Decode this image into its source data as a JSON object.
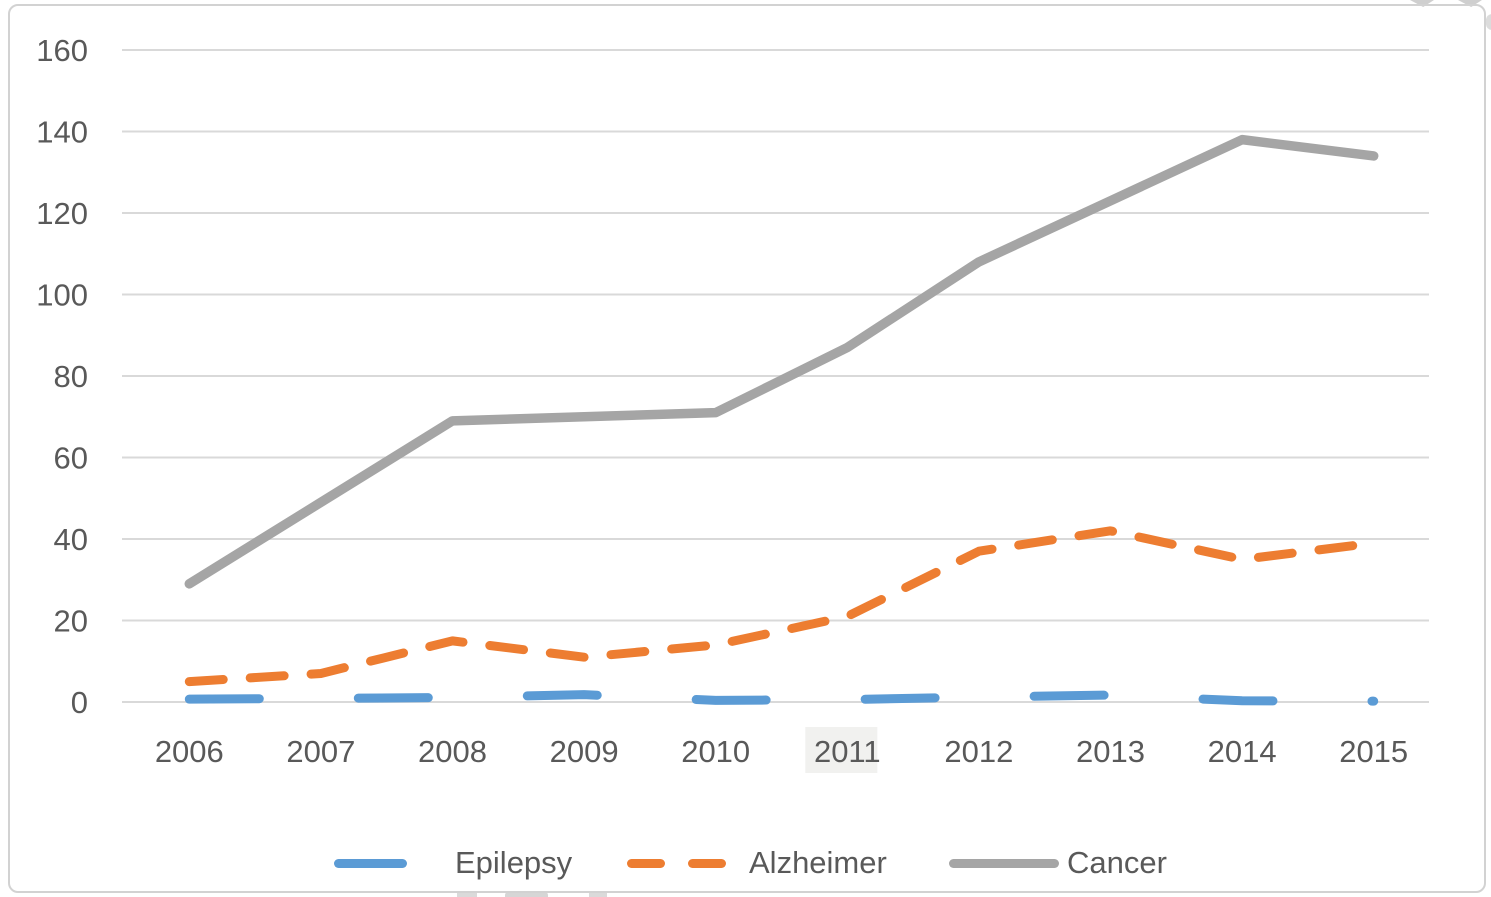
{
  "figure": {
    "background": "#ffffff",
    "border_color": "#d2d2d2"
  },
  "chart_data": {
    "type": "line",
    "title": "",
    "xlabel": "",
    "ylabel": "",
    "x_categories": [
      "2006",
      "2007",
      "2008",
      "2009",
      "2010",
      "2011",
      "2012",
      "2013",
      "2014",
      "2015"
    ],
    "series": [
      {
        "name": "Epilepsy",
        "color": "#5B9BD5",
        "line_style": "long-dash",
        "values": [
          0.7,
          0.9,
          1.1,
          1.8,
          0.4,
          0.6,
          1.2,
          1.7,
          0.3,
          0.2
        ]
      },
      {
        "name": "Alzheimer",
        "color": "#ED7D31",
        "line_style": "dash",
        "values": [
          5,
          7,
          15,
          11,
          14,
          21,
          37,
          42,
          35,
          39
        ]
      },
      {
        "name": "Cancer",
        "color": "#A5A5A5",
        "line_style": "solid",
        "values": [
          29,
          49,
          69,
          70,
          71,
          87,
          108,
          123,
          138,
          134
        ]
      }
    ],
    "ylim": [
      0,
      160
    ],
    "yticks": [
      0,
      20,
      40,
      60,
      80,
      100,
      120,
      140,
      160
    ],
    "grid": "horizontal",
    "gridline_color": "#d9d9d9",
    "axis_text_color": "#595959",
    "legend_position": "bottom",
    "highlighted_x_label": "2011",
    "highlight_color": "#f1f1ef"
  }
}
